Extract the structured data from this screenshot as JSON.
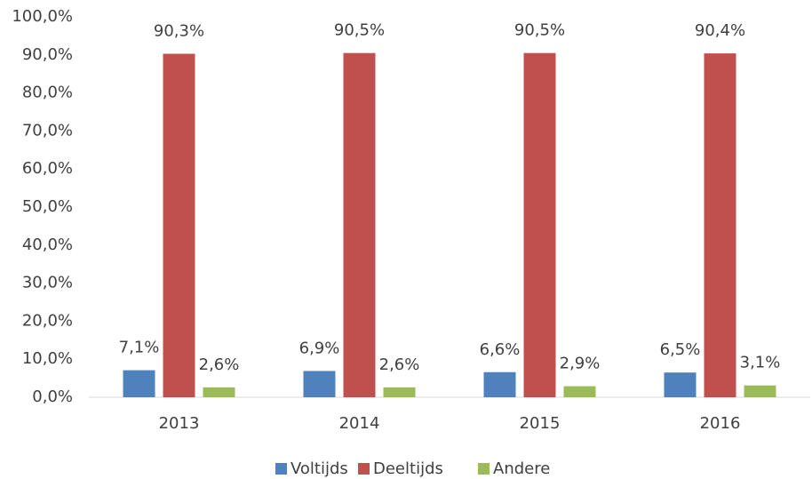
{
  "chart_data": {
    "type": "bar",
    "categories": [
      "2013",
      "2014",
      "2015",
      "2016"
    ],
    "series": [
      {
        "name": "Voltijds",
        "color": "#4f81bd",
        "values": [
          7.1,
          6.9,
          6.6,
          6.5
        ],
        "value_labels": [
          "7,1%",
          "6,9%",
          "6,6%",
          "6,5%"
        ]
      },
      {
        "name": "Deeltijds",
        "color": "#c0504d",
        "values": [
          90.3,
          90.5,
          90.5,
          90.4
        ],
        "value_labels": [
          "90,3%",
          "90,5%",
          "90,5%",
          "90,4%"
        ]
      },
      {
        "name": "Andere",
        "color": "#9bbb59",
        "values": [
          2.6,
          2.6,
          2.9,
          3.1
        ],
        "value_labels": [
          "2,6%",
          "2,6%",
          "2,9%",
          "3,1%"
        ]
      }
    ],
    "ylim": [
      0,
      100
    ],
    "yticks": [
      {
        "value": 0,
        "label": "0,0%"
      },
      {
        "value": 10,
        "label": "10,0%"
      },
      {
        "value": 20,
        "label": "20,0%"
      },
      {
        "value": 30,
        "label": "30,0%"
      },
      {
        "value": 40,
        "label": "40,0%"
      },
      {
        "value": 50,
        "label": "50,0%"
      },
      {
        "value": 60,
        "label": "60,0%"
      },
      {
        "value": 70,
        "label": "70,0%"
      },
      {
        "value": 80,
        "label": "80,0%"
      },
      {
        "value": 90,
        "label": "90,0%"
      },
      {
        "value": 100,
        "label": "100,0%"
      }
    ],
    "grid": false,
    "legend": "bottom"
  }
}
